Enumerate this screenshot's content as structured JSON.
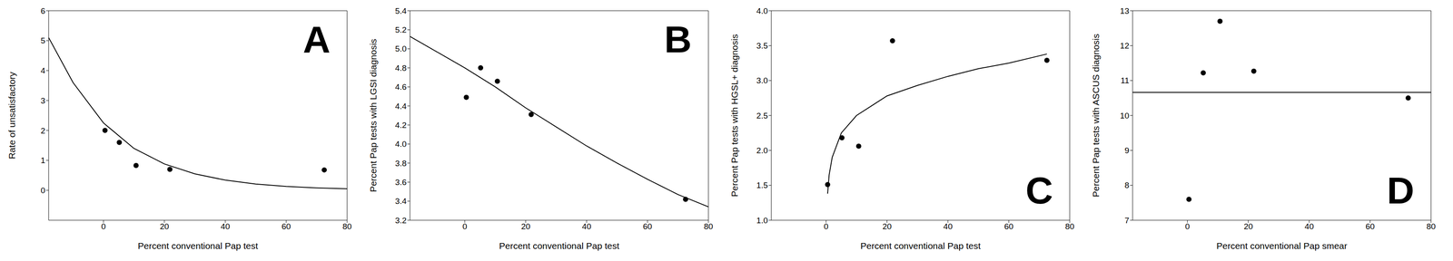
{
  "chart_data": [
    {
      "type": "scatter",
      "title": "A",
      "x_label": "Percent conventional Pap test",
      "y_label": "Rate of unsatisfactory",
      "xlim": [
        -18,
        80
      ],
      "xticks": [
        0,
        20,
        40,
        60,
        80
      ],
      "ylim": [
        -1,
        6
      ],
      "yticks": [
        0,
        1,
        2,
        3,
        4,
        5,
        6
      ],
      "series": [
        {
          "type": "scatter",
          "marker": "circle",
          "color": "#000000",
          "x": [
            0.5,
            5.2,
            10.7,
            21.8,
            72.5
          ],
          "values": [
            2.0,
            1.6,
            0.83,
            0.7,
            0.68
          ]
        },
        {
          "type": "line",
          "line_style": "solid",
          "color": "#000000",
          "x": [
            -18,
            -10,
            0,
            10,
            20,
            30,
            40,
            50,
            60,
            70,
            80
          ],
          "values": [
            5.1,
            3.6,
            2.25,
            1.4,
            0.88,
            0.55,
            0.34,
            0.21,
            0.13,
            0.08,
            0.05
          ]
        }
      ]
    },
    {
      "type": "scatter",
      "title": "B",
      "x_label": "Percent conventional Pap test",
      "y_label": "Percent Pap tests with LGSI diagnosis",
      "xlim": [
        -18,
        80
      ],
      "xticks": [
        0,
        20,
        40,
        60,
        80
      ],
      "ylim": [
        3.2,
        5.4
      ],
      "yticks": [
        3.2,
        3.4,
        3.6,
        3.8,
        {
          "value": 4,
          "label": "4.0"
        },
        4.2,
        4.4,
        4.6,
        4.8,
        {
          "value": 5,
          "label": "5.0"
        },
        5.2,
        5.4
      ],
      "series": [
        {
          "type": "scatter",
          "marker": "circle",
          "color": "#000000",
          "x": [
            0.5,
            5.2,
            10.7,
            21.8,
            72.5
          ],
          "values": [
            4.49,
            4.8,
            4.66,
            4.31,
            3.42
          ]
        },
        {
          "type": "line",
          "line_style": "solid",
          "color": "#000000",
          "x": [
            -18,
            0,
            10,
            20,
            30,
            40,
            50,
            60,
            70,
            80
          ],
          "values": [
            5.13,
            4.8,
            4.6,
            4.38,
            4.18,
            3.98,
            3.8,
            3.63,
            3.47,
            3.34
          ]
        }
      ]
    },
    {
      "type": "scatter",
      "title": "C",
      "x_label": "Percent conventional Pap test",
      "y_label": "Percent Pap tests with HGSL+ diagnosis",
      "xlim": [
        -18,
        80
      ],
      "xticks": [
        0,
        20,
        40,
        60,
        80
      ],
      "ylim": [
        1,
        4
      ],
      "yticks": [
        {
          "value": 1,
          "label": "1.0"
        },
        1.5,
        {
          "value": 2,
          "label": "2.0"
        },
        2.5,
        {
          "value": 3,
          "label": "3.0"
        },
        3.5,
        {
          "value": 4,
          "label": "4.0"
        }
      ],
      "series": [
        {
          "type": "scatter",
          "marker": "circle",
          "color": "#000000",
          "x": [
            0.5,
            5.2,
            10.7,
            21.8,
            72.5
          ],
          "values": [
            1.51,
            2.18,
            2.06,
            3.57,
            3.29
          ]
        },
        {
          "type": "line",
          "line_style": "solid",
          "color": "#000000",
          "x": [
            0.5,
            1,
            2,
            5,
            10,
            20,
            30,
            40,
            50,
            60,
            72.5
          ],
          "values": [
            1.38,
            1.65,
            1.9,
            2.25,
            2.5,
            2.78,
            2.93,
            3.06,
            3.17,
            3.25,
            3.38
          ]
        }
      ]
    },
    {
      "type": "scatter",
      "title": "D",
      "x_label": "Percent conventional Pap smear",
      "y_label": "Percent Pap tests with ASCUS diagnosis",
      "xlim": [
        -18,
        80
      ],
      "xticks": [
        0,
        20,
        40,
        60,
        80
      ],
      "ylim": [
        7,
        13
      ],
      "yticks": [
        7,
        8,
        9,
        10,
        11,
        12,
        13
      ],
      "series": [
        {
          "type": "scatter",
          "marker": "circle",
          "color": "#000000",
          "x": [
            0.5,
            5.2,
            10.7,
            21.8,
            72.5
          ],
          "values": [
            7.6,
            11.22,
            12.7,
            11.27,
            10.5
          ]
        },
        {
          "type": "line",
          "line_style": "solid",
          "color": "#000000",
          "x": [
            -18,
            80
          ],
          "values": [
            10.66,
            10.66
          ]
        }
      ]
    }
  ]
}
